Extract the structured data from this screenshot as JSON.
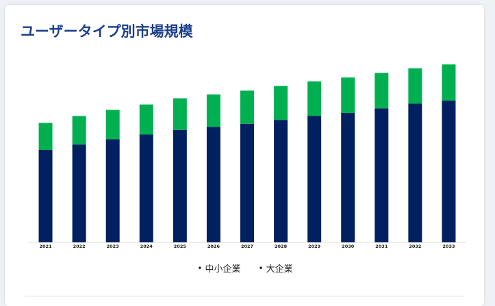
{
  "title": "ユーザータイプ別市場規模",
  "legend": [
    "中小企業",
    "大企業"
  ],
  "colors": {
    "sme": "#002060",
    "large": "#00b050",
    "title": "#1b3f8a"
  },
  "chart_data": {
    "type": "bar",
    "stacked": true,
    "title": "ユーザータイプ別市場規模",
    "xlabel": "",
    "ylabel": "",
    "categories": [
      "2021",
      "2022",
      "2023",
      "2024",
      "2025",
      "2026",
      "2027",
      "2028",
      "2029",
      "2030",
      "2031",
      "2032",
      "2033"
    ],
    "ylim": [
      0,
      240
    ],
    "y_axis_labels_shown": false,
    "grid": false,
    "legend_position": "bottom",
    "series": [
      {
        "name": "中小企業",
        "color": "#002060",
        "values": [
          120,
          127,
          134,
          140,
          146,
          150,
          154,
          159,
          164,
          168,
          174,
          180,
          184
        ]
      },
      {
        "name": "大企業",
        "color": "#00b050",
        "values": [
          35,
          37,
          38,
          39,
          41,
          42,
          43,
          44,
          45,
          46,
          46,
          46,
          47
        ]
      }
    ]
  }
}
